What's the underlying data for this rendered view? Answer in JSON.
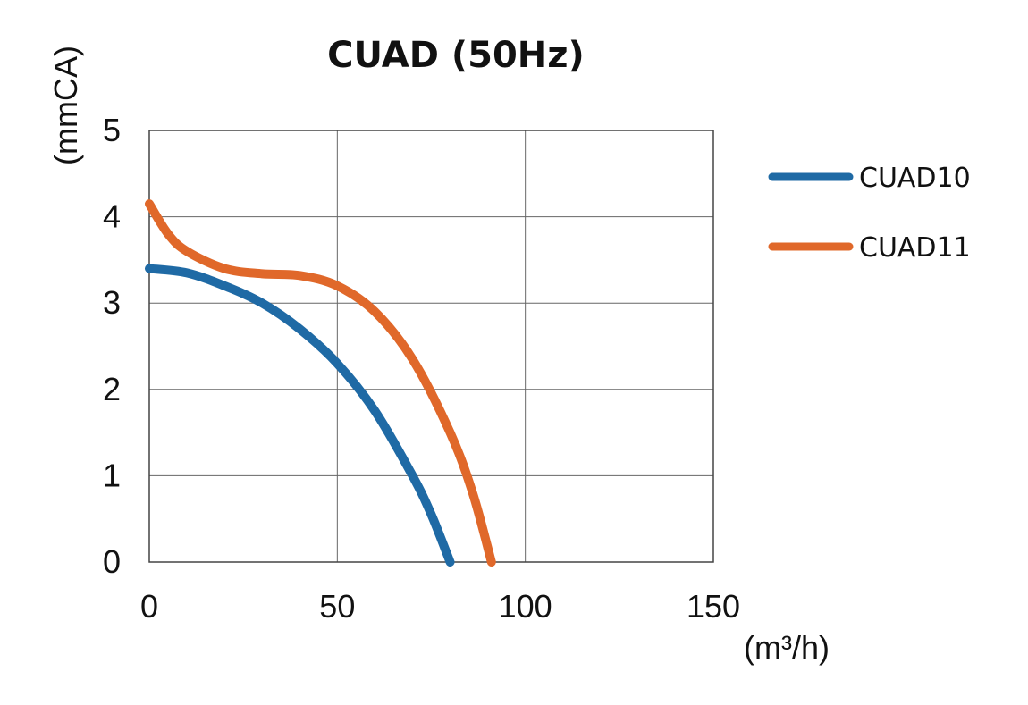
{
  "chart_data": {
    "type": "line",
    "title": "CUAD (50Hz)",
    "xlabel": "(m³/h)",
    "ylabel": "(mmCA)",
    "xlim": [
      0,
      150
    ],
    "ylim": [
      0,
      5
    ],
    "xticks": [
      0,
      50,
      100,
      150
    ],
    "yticks": [
      0,
      1,
      2,
      3,
      4,
      5
    ],
    "grid": true,
    "legend_position": "right",
    "series": [
      {
        "name": "CUAD10",
        "color": "#1f6aa5",
        "points": [
          [
            0,
            3.4
          ],
          [
            10,
            3.35
          ],
          [
            20,
            3.2
          ],
          [
            30,
            3.0
          ],
          [
            40,
            2.7
          ],
          [
            50,
            2.3
          ],
          [
            60,
            1.75
          ],
          [
            70,
            1.0
          ],
          [
            75,
            0.55
          ],
          [
            80,
            0.0
          ]
        ]
      },
      {
        "name": "CUAD11",
        "color": "#e0682a",
        "points": [
          [
            0,
            4.15
          ],
          [
            5,
            3.8
          ],
          [
            10,
            3.6
          ],
          [
            20,
            3.4
          ],
          [
            30,
            3.34
          ],
          [
            40,
            3.32
          ],
          [
            50,
            3.2
          ],
          [
            60,
            2.9
          ],
          [
            70,
            2.35
          ],
          [
            80,
            1.5
          ],
          [
            86,
            0.8
          ],
          [
            91,
            0.0
          ]
        ]
      }
    ]
  }
}
